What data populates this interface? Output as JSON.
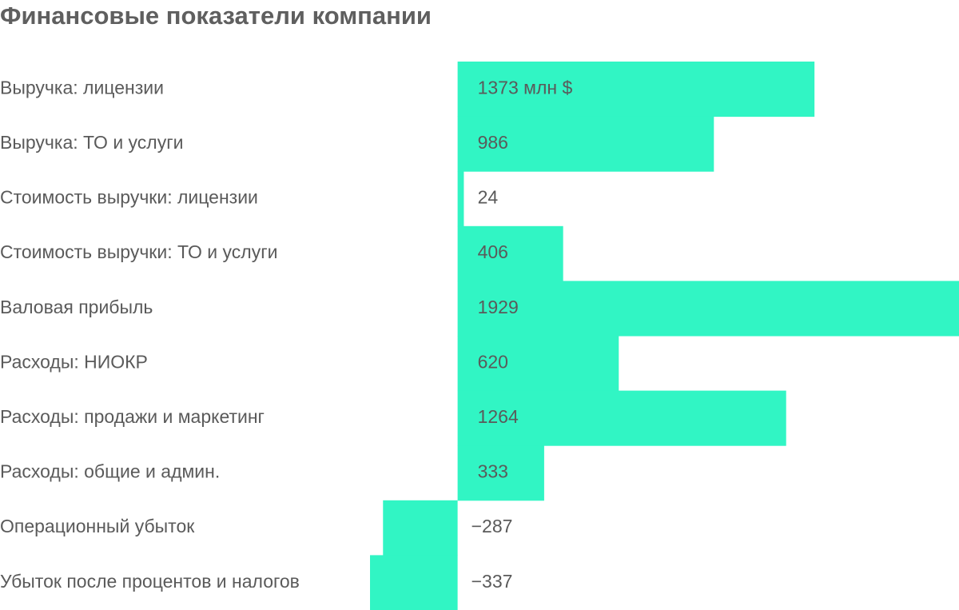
{
  "chart_data": {
    "type": "bar",
    "orientation": "horizontal",
    "title": "Финансовые показатели компании",
    "categories": [
      "Выручка: лицензии",
      "Выручка: ТО и услуги",
      "Стоимость выручки: лицензии",
      "Стоимость выручки: ТО и услуги",
      "Валовая прибыль",
      "Расходы: НИОКР",
      "Расходы: продажи и маркетинг",
      "Расходы: общие и админ.",
      "Операционный убыток",
      "Убыток после процентов и налогов"
    ],
    "values": [
      1373,
      986,
      24,
      406,
      1929,
      620,
      1264,
      333,
      -287,
      -337
    ],
    "value_labels": [
      "1373 млн $",
      "986",
      "24",
      "406",
      "1929",
      "620",
      "1264",
      "333",
      "−287",
      "−337"
    ],
    "color": "#31f5c4"
  }
}
